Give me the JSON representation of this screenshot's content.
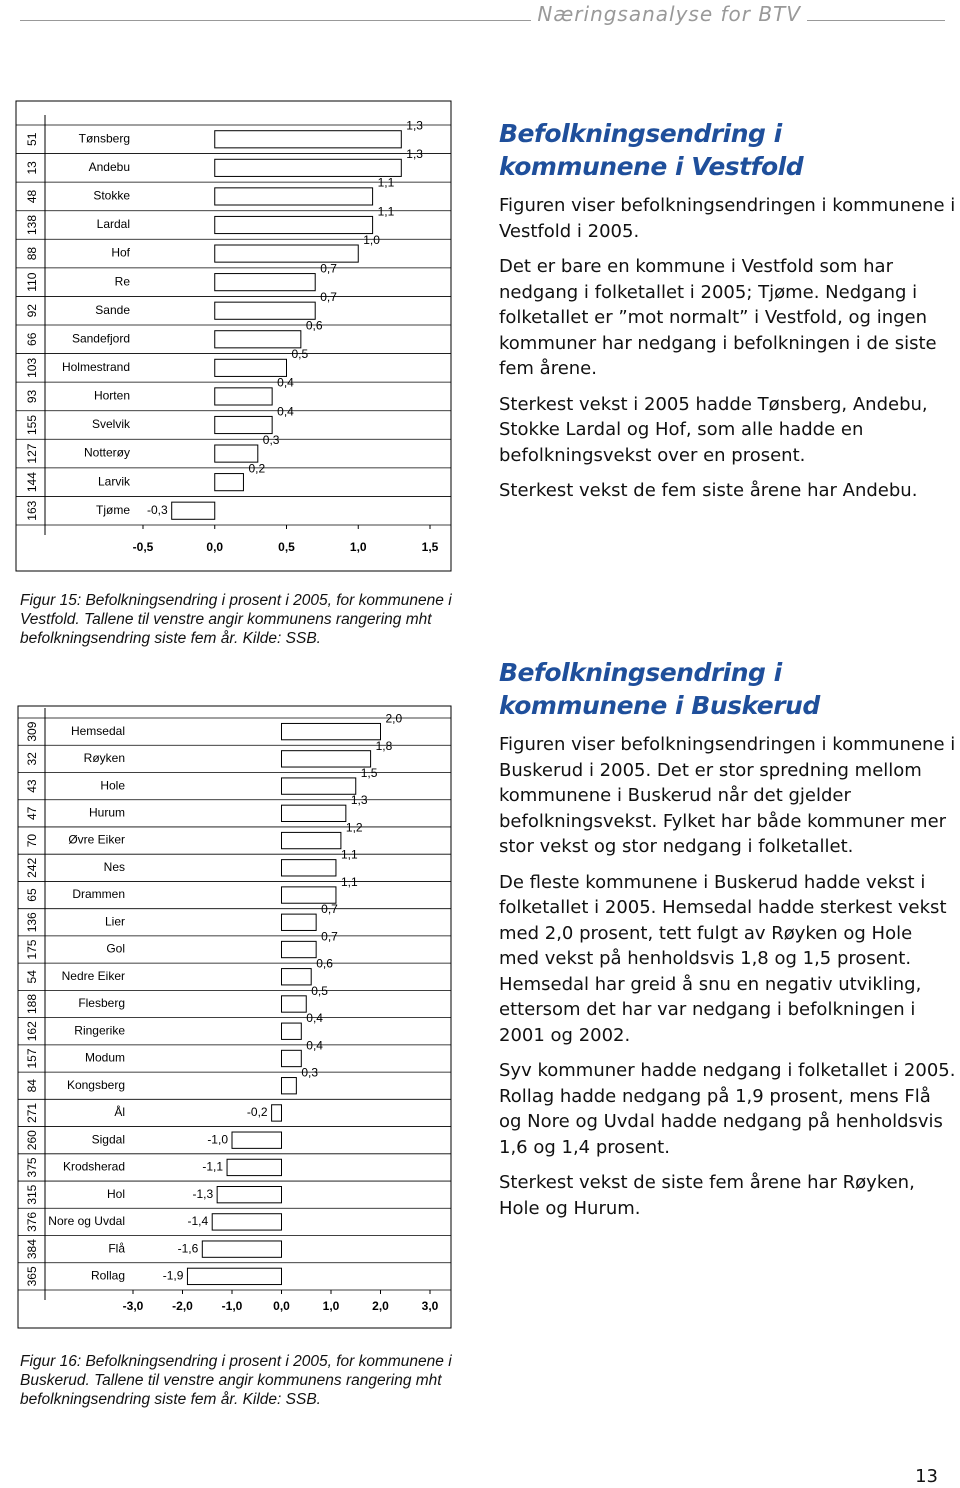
{
  "header": {
    "title": "Næringsanalyse for BTV"
  },
  "chart_data": [
    {
      "type": "bar",
      "orientation": "horizontal",
      "color": "#ffffff",
      "edge_color": "#000000",
      "categories": [
        "Tønsberg",
        "Andebu",
        "Stokke",
        "Lardal",
        "Hof",
        "Re",
        "Sande",
        "Sandefjord",
        "Holmestrand",
        "Horten",
        "Svelvik",
        "Notterøy",
        "Larvik",
        "Tjøme"
      ],
      "ranks": [
        "51",
        "13",
        "48",
        "138",
        "88",
        "110",
        "92",
        "66",
        "103",
        "93",
        "155",
        "127",
        "144",
        "163"
      ],
      "values": [
        1.3,
        1.3,
        1.1,
        1.1,
        1.0,
        0.7,
        0.7,
        0.6,
        0.5,
        0.4,
        0.4,
        0.3,
        0.2,
        -0.3
      ],
      "value_labels": [
        "1,3",
        "1,3",
        "1,1",
        "1,1",
        "1,0",
        "0,7",
        "0,7",
        "0,6",
        "0,5",
        "0,4",
        "0,4",
        "0,3",
        "0,2",
        "-0,3"
      ],
      "xlim": [
        -0.5,
        1.5
      ],
      "xticks": [
        {
          "value": -0.5,
          "label": "-0,5"
        },
        {
          "value": 0,
          "label": "0,0"
        },
        {
          "value": 0.5,
          "label": "0,5"
        },
        {
          "value": 1,
          "label": "1,0"
        },
        {
          "value": 1.5,
          "label": "1,5"
        }
      ]
    },
    {
      "type": "bar",
      "orientation": "horizontal",
      "color": "#ffffff",
      "edge_color": "#000000",
      "categories": [
        "Hemsedal",
        "Røyken",
        "Hole",
        "Hurum",
        "Øvre Eiker",
        "Nes",
        "Drammen",
        "Lier",
        "Gol",
        "Nedre Eiker",
        "Flesberg",
        "Ringerike",
        "Modum",
        "Kongsberg",
        "Ål",
        "Sigdal",
        "Krodsherad",
        "Hol",
        "Nore og Uvdal",
        "Flå",
        "Rollag"
      ],
      "ranks": [
        "309",
        "32",
        "43",
        "47",
        "70",
        "242",
        "65",
        "136",
        "175",
        "54",
        "188",
        "162",
        "157",
        "84",
        "271",
        "260",
        "375",
        "315",
        "376",
        "384",
        "365"
      ],
      "values": [
        2.0,
        1.8,
        1.5,
        1.3,
        1.2,
        1.1,
        1.1,
        0.7,
        0.7,
        0.6,
        0.5,
        0.4,
        0.4,
        0.3,
        -0.2,
        -1.0,
        -1.1,
        -1.3,
        -1.4,
        -1.6,
        -1.9
      ],
      "value_labels": [
        "2,0",
        "1,8",
        "1,5",
        "1,3",
        "1,2",
        "1,1",
        "1,1",
        "0,7",
        "0,7",
        "0,6",
        "0,5",
        "0,4",
        "0,4",
        "0,3",
        "-0,2",
        "-1,0",
        "-1,1",
        "-1,3",
        "-1,4",
        "-1,6",
        "-1,9"
      ],
      "xlim": [
        -3,
        3
      ],
      "xticks": [
        {
          "value": -3,
          "label": "-3,0"
        },
        {
          "value": -2,
          "label": "-2,0"
        },
        {
          "value": -1,
          "label": "-1,0"
        },
        {
          "value": 0,
          "label": "0,0"
        },
        {
          "value": 1,
          "label": "1,0"
        },
        {
          "value": 2,
          "label": "2,0"
        },
        {
          "value": 3,
          "label": "3,0"
        }
      ]
    }
  ],
  "captions": [
    "Figur 15: Befolkningsendring i prosent i 2005, for kommunene i Vestfold. Tallene til venstre angir kommunens rangering mht befolkningsendring siste fem år. Kilde: SSB.",
    "Figur 16: Befolkningsendring i prosent i 2005, for kommunene i Buskerud. Tallene til venstre angir kommunens rangering mht befolkningsendring siste fem år. Kilde: SSB."
  ],
  "sections": [
    {
      "heading": "Befolkningsendring i kommunene i Vestfold",
      "paragraphs": [
        "Figuren viser befolkningsendringen i kommunene i Vestfold i 2005.",
        "Det er bare en kommune i Vestfold som har nedgang i folketallet i 2005; Tjøme. Nedgang i folketallet er ”mot normalt” i Vestfold, og ingen kommuner har nedgang i befolkningen i de siste fem årene.",
        "Sterkest vekst i 2005 hadde Tønsberg, Andebu, Stokke Lardal og Hof, som alle hadde en befolkningsvekst over en prosent.",
        "Sterkest vekst de fem siste årene har Andebu."
      ]
    },
    {
      "heading": "Befolkningsendring i kommunene i Buskerud",
      "paragraphs": [
        "Figuren viser befolkningsendringen i kommunene i Buskerud i 2005. Det er stor spredning mellom kommunene i Buskerud når det gjelder befolkningsvekst. Fylket har både kommuner mer stor vekst og stor nedgang i folketallet.",
        "De fleste kommunene i Buskerud hadde vekst i folketallet i 2005. Hemsedal hadde sterkest vekst med 2,0 prosent, tett fulgt av Røyken og Hole med vekst på henholdsvis 1,8 og 1,5 prosent. Hemsedal har greid å snu en negativ utvikling, ettersom det har var nedgang i befolkningen i 2001 og 2002.",
        "Syv kommuner hadde nedgang i folketallet i 2005. Rollag hadde nedgang på 1,9 prosent, mens Flå og Nore og Uvdal hadde nedgang på henholdsvis 1,6 og 1,4 prosent.",
        "Sterkest vekst de siste fem årene har Røyken, Hole og Hurum."
      ]
    }
  ],
  "page_number": "13"
}
